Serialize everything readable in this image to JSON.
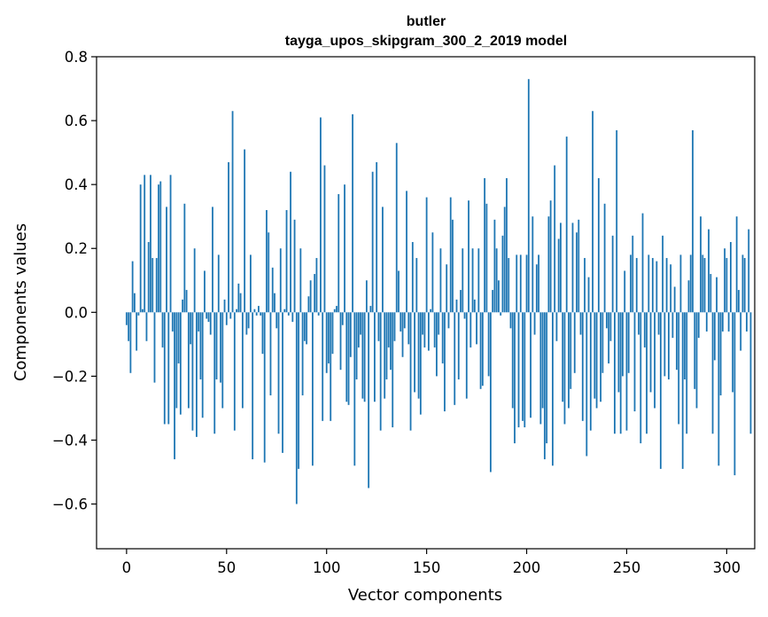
{
  "chart_data": {
    "type": "bar",
    "title": "butler",
    "subtitle": "tayga_upos_skipgram_300_2_2019 model",
    "xlabel": "Vector components",
    "ylabel": "Components values",
    "xlim": [
      -15,
      314
    ],
    "ylim": [
      -0.74,
      0.8
    ],
    "xticks": [
      0,
      50,
      100,
      150,
      200,
      250,
      300
    ],
    "xtick_labels": [
      "0",
      "50",
      "100",
      "150",
      "200",
      "250",
      "300"
    ],
    "yticks": [
      0.8,
      0.6,
      0.4,
      0.2,
      0.0,
      -0.2,
      -0.4,
      -0.6
    ],
    "ytick_labels": [
      "0.8",
      "0.6",
      "0.4",
      "0.2",
      "0.0",
      "−0.2",
      "−0.4",
      "−0.6"
    ],
    "grid": false,
    "bar_color": "#1f77b4",
    "values": [
      -0.04,
      -0.09,
      -0.19,
      0.16,
      0.06,
      -0.12,
      -0.01,
      0.4,
      0.01,
      0.43,
      -0.09,
      0.22,
      0.43,
      0.17,
      -0.22,
      0.17,
      0.4,
      0.41,
      -0.11,
      -0.35,
      0.33,
      -0.35,
      0.43,
      -0.06,
      -0.46,
      -0.3,
      -0.16,
      -0.32,
      0.04,
      0.34,
      0.07,
      -0.3,
      -0.1,
      -0.37,
      0.2,
      -0.39,
      -0.06,
      -0.21,
      -0.33,
      0.13,
      -0.02,
      -0.03,
      -0.07,
      0.33,
      -0.38,
      -0.21,
      0.18,
      -0.22,
      -0.3,
      0.04,
      -0.04,
      0.47,
      -0.02,
      0.63,
      -0.37,
      0.01,
      0.09,
      0.06,
      -0.3,
      0.51,
      -0.07,
      -0.05,
      0.18,
      -0.46,
      0.01,
      -0.01,
      0.02,
      -0.01,
      -0.13,
      -0.47,
      0.32,
      0.25,
      -0.26,
      0.14,
      0.06,
      -0.05,
      -0.38,
      0.2,
      -0.44,
      0.01,
      0.32,
      -0.01,
      0.44,
      -0.03,
      0.29,
      -0.6,
      -0.49,
      0.2,
      -0.26,
      -0.09,
      -0.1,
      0.05,
      0.1,
      -0.48,
      0.12,
      0.17,
      -0.01,
      0.61,
      -0.34,
      0.46,
      -0.19,
      -0.16,
      -0.34,
      -0.13,
      0.01,
      0.02,
      0.37,
      -0.18,
      -0.04,
      0.4,
      -0.28,
      -0.29,
      -0.14,
      0.62,
      -0.48,
      -0.21,
      -0.11,
      -0.07,
      -0.27,
      -0.28,
      0.1,
      -0.55,
      0.02,
      0.44,
      -0.28,
      0.47,
      -0.09,
      -0.37,
      0.33,
      -0.27,
      -0.21,
      -0.11,
      -0.18,
      -0.36,
      -0.09,
      0.53,
      0.13,
      -0.06,
      -0.14,
      -0.05,
      0.38,
      -0.1,
      -0.37,
      0.22,
      -0.25,
      0.17,
      -0.27,
      -0.32,
      -0.07,
      -0.11,
      0.36,
      -0.12,
      0.01,
      0.25,
      -0.11,
      -0.2,
      -0.07,
      0.2,
      -0.16,
      -0.31,
      0.15,
      -0.05,
      0.36,
      0.29,
      -0.29,
      0.04,
      -0.21,
      0.07,
      0.2,
      -0.02,
      -0.27,
      0.35,
      -0.11,
      0.2,
      0.04,
      -0.1,
      0.2,
      -0.24,
      -0.23,
      0.42,
      0.34,
      -0.2,
      -0.5,
      0.07,
      0.29,
      0.2,
      0.1,
      -0.01,
      0.24,
      0.33,
      0.42,
      0.17,
      -0.05,
      -0.3,
      -0.41,
      0.18,
      -0.36,
      0.18,
      -0.34,
      -0.36,
      0.18,
      0.73,
      -0.33,
      0.3,
      -0.07,
      0.15,
      0.18,
      -0.35,
      -0.3,
      -0.46,
      -0.41,
      0.3,
      0.35,
      -0.48,
      0.46,
      -0.09,
      0.23,
      0.28,
      -0.28,
      -0.35,
      0.55,
      -0.3,
      -0.24,
      0.28,
      -0.19,
      0.25,
      0.29,
      -0.07,
      -0.34,
      0.17,
      -0.45,
      0.11,
      -0.37,
      0.63,
      -0.27,
      -0.3,
      0.42,
      -0.28,
      -0.19,
      0.34,
      -0.05,
      -0.16,
      -0.09,
      0.24,
      -0.38,
      0.57,
      -0.25,
      -0.38,
      -0.2,
      0.13,
      -0.37,
      -0.19,
      0.18,
      0.24,
      -0.31,
      0.17,
      -0.07,
      -0.41,
      0.31,
      -0.11,
      -0.38,
      0.18,
      -0.25,
      0.17,
      -0.3,
      0.16,
      -0.07,
      -0.49,
      0.24,
      -0.2,
      0.17,
      -0.21,
      0.15,
      -0.08,
      0.08,
      -0.18,
      -0.35,
      0.18,
      -0.49,
      -0.21,
      -0.38,
      0.1,
      0.18,
      0.57,
      -0.24,
      -0.3,
      -0.08,
      0.3,
      0.18,
      0.17,
      -0.06,
      0.26,
      0.12,
      -0.38,
      -0.15,
      0.11,
      -0.48,
      -0.26,
      -0.06,
      0.2,
      0.17,
      -0.06,
      0.22,
      -0.25,
      -0.51,
      0.3,
      0.07,
      -0.12,
      0.18,
      0.17,
      -0.06,
      0.26,
      -0.38
    ]
  }
}
